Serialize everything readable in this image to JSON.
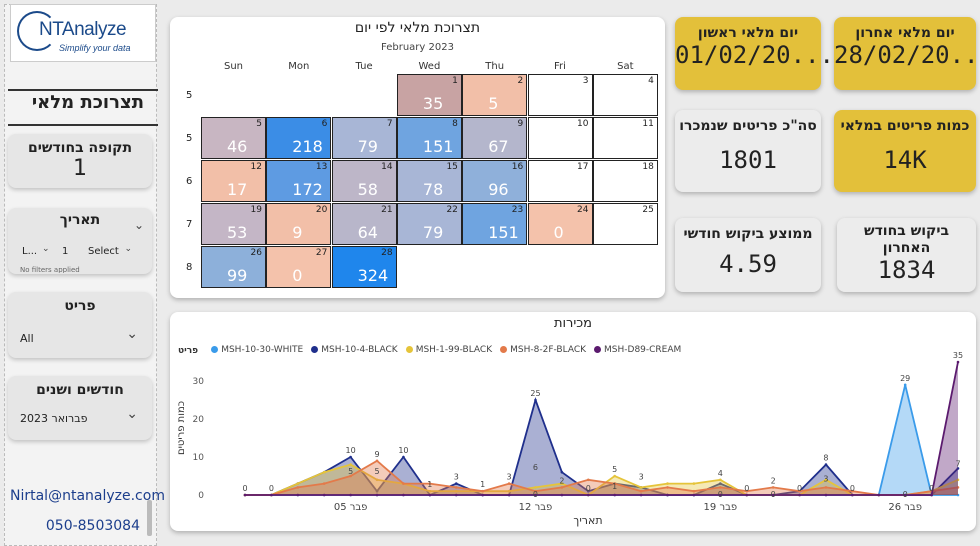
{
  "logo": {
    "name": "NTAnalyze",
    "tagline": "Simplify your data"
  },
  "sidebar": {
    "title": "תצרוכת מלאי",
    "period": {
      "label": "תקופה בחודשים",
      "value": "1"
    },
    "date": {
      "label": "תאריך",
      "op": "L...",
      "num": "1",
      "select": "Select",
      "note": "No filters applied"
    },
    "item": {
      "label": "פריט",
      "value": "All"
    },
    "months": {
      "label": "חודשים ושנים",
      "value": "פברואר 2023"
    },
    "email": "Nirtal@ntanalyze.com",
    "phone": "050-8503084"
  },
  "calendar": {
    "title": "תצרוכת מלאי לפי יום",
    "month": "February 2023",
    "dows": [
      "Sun",
      "Mon",
      "Tue",
      "Wed",
      "Thu",
      "Fri",
      "Sat"
    ],
    "weeks": [
      "5",
      "5",
      "6",
      "7",
      "8"
    ],
    "cells": [
      {
        "r": 0,
        "c": 3,
        "d": "1",
        "v": "35",
        "col": "#c8a3a3"
      },
      {
        "r": 0,
        "c": 4,
        "d": "2",
        "v": "5",
        "col": "#f2bfa8"
      },
      {
        "r": 0,
        "c": 5,
        "d": "3",
        "v": "",
        "col": "#ffffff"
      },
      {
        "r": 0,
        "c": 6,
        "d": "4",
        "v": "",
        "col": "#ffffff"
      },
      {
        "r": 1,
        "c": 0,
        "d": "5",
        "v": "46",
        "col": "#c8b6c2"
      },
      {
        "r": 1,
        "c": 1,
        "d": "6",
        "v": "218",
        "col": "#3b8de6"
      },
      {
        "r": 1,
        "c": 2,
        "d": "7",
        "v": "79",
        "col": "#a8b6d6"
      },
      {
        "r": 1,
        "c": 3,
        "d": "8",
        "v": "151",
        "col": "#6fa4e0"
      },
      {
        "r": 1,
        "c": 4,
        "d": "9",
        "v": "67",
        "col": "#b4b6cc"
      },
      {
        "r": 1,
        "c": 5,
        "d": "10",
        "v": "",
        "col": "#ffffff"
      },
      {
        "r": 1,
        "c": 6,
        "d": "11",
        "v": "",
        "col": "#ffffff"
      },
      {
        "r": 2,
        "c": 0,
        "d": "12",
        "v": "17",
        "col": "#f2bfa8"
      },
      {
        "r": 2,
        "c": 1,
        "d": "13",
        "v": "172",
        "col": "#5e9be2"
      },
      {
        "r": 2,
        "c": 2,
        "d": "14",
        "v": "58",
        "col": "#bdb6c8"
      },
      {
        "r": 2,
        "c": 3,
        "d": "15",
        "v": "78",
        "col": "#a8b6d6"
      },
      {
        "r": 2,
        "c": 4,
        "d": "16",
        "v": "96",
        "col": "#8fb0da"
      },
      {
        "r": 2,
        "c": 5,
        "d": "17",
        "v": "",
        "col": "#ffffff"
      },
      {
        "r": 2,
        "c": 6,
        "d": "18",
        "v": "",
        "col": "#ffffff"
      },
      {
        "r": 3,
        "c": 0,
        "d": "19",
        "v": "53",
        "col": "#c4b6c6"
      },
      {
        "r": 3,
        "c": 1,
        "d": "20",
        "v": "9",
        "col": "#f2bfa8"
      },
      {
        "r": 3,
        "c": 2,
        "d": "21",
        "v": "64",
        "col": "#b8b6ca"
      },
      {
        "r": 3,
        "c": 3,
        "d": "22",
        "v": "79",
        "col": "#a8b6d6"
      },
      {
        "r": 3,
        "c": 4,
        "d": "23",
        "v": "151",
        "col": "#6fa4e0"
      },
      {
        "r": 3,
        "c": 5,
        "d": "24",
        "v": "0",
        "col": "#f4c2ab"
      },
      {
        "r": 3,
        "c": 6,
        "d": "25",
        "v": "",
        "col": "#ffffff"
      },
      {
        "r": 4,
        "c": 0,
        "d": "26",
        "v": "99",
        "col": "#8db0da"
      },
      {
        "r": 4,
        "c": 1,
        "d": "27",
        "v": "0",
        "col": "#f4c2ab"
      },
      {
        "r": 4,
        "c": 2,
        "d": "28",
        "v": "324",
        "col": "#1f86ec"
      }
    ]
  },
  "kpis": {
    "last_day": {
      "label": "יום מלאי אחרון",
      "value": "28/02/20..."
    },
    "first_day": {
      "label": "יום מלאי ראשון",
      "value": "01/02/20..."
    },
    "stock_qty": {
      "label": "כמות פריטים במלאי",
      "value": "14K"
    },
    "sold_total": {
      "label": "סה\"כ פריטים שנמכרו",
      "value": "1801"
    },
    "last_month_demand": {
      "label": "ביקוש בחודש האחרון",
      "value": "1834"
    },
    "avg_monthly_demand": {
      "label": "ממוצע ביקוש חודשי",
      "value": "4.59"
    }
  },
  "chart_data": {
    "type": "area",
    "title": "מכירות",
    "legend_title": "פריט",
    "xlabel": "תאריך",
    "ylabel": "כמות פריטים",
    "ylim": [
      0,
      35
    ],
    "yticks": [
      0,
      10,
      20,
      30
    ],
    "xticks": [
      {
        "day": 5,
        "label": "פבר 05"
      },
      {
        "day": 12,
        "label": "פבר 12"
      },
      {
        "day": 19,
        "label": "פבר 19"
      },
      {
        "day": 26,
        "label": "פבר 26"
      }
    ],
    "x": [
      1,
      2,
      3,
      4,
      5,
      6,
      7,
      8,
      9,
      10,
      11,
      12,
      13,
      14,
      15,
      16,
      17,
      18,
      19,
      20,
      21,
      22,
      23,
      24,
      25,
      26,
      27,
      28
    ],
    "series": [
      {
        "name": "MSH-10-30-WHITE",
        "color": "#3a9bea",
        "values": [
          0,
          0,
          0,
          0,
          0,
          0,
          0,
          0,
          0,
          0,
          0,
          0,
          0,
          0,
          0,
          0,
          0,
          0,
          0,
          0,
          0,
          0,
          0,
          0,
          0,
          29,
          0,
          0
        ]
      },
      {
        "name": "MSH-10-4-BLACK",
        "color": "#1f2f8c",
        "values": [
          0,
          0,
          3,
          6,
          10,
          1,
          10,
          0,
          3,
          0,
          0,
          25,
          6,
          1,
          3,
          2,
          0,
          0,
          3,
          0,
          0,
          1,
          8,
          0,
          0,
          0,
          0,
          7
        ]
      },
      {
        "name": "MSH-1-99-BLACK",
        "color": "#e5c43a",
        "values": [
          0,
          0,
          3,
          6,
          8,
          4,
          3,
          1,
          1,
          1,
          1,
          2,
          3,
          0,
          5,
          2,
          3,
          3,
          4,
          0,
          0,
          0,
          4,
          0,
          0,
          0,
          1,
          4
        ]
      },
      {
        "name": "MSH-8-2F-BLACK",
        "color": "#e37a4a",
        "values": [
          0,
          0,
          2,
          3,
          5,
          9,
          3,
          3,
          2,
          1,
          3,
          1,
          2,
          4,
          3,
          1,
          2,
          1,
          2,
          1,
          2,
          1,
          2,
          1,
          0,
          0,
          1,
          2
        ]
      },
      {
        "name": "MSH-D89-CREAM",
        "color": "#5b1a6e",
        "values": [
          0,
          0,
          0,
          0,
          0,
          0,
          0,
          0,
          0,
          0,
          0,
          0,
          0,
          0,
          0,
          0,
          0,
          0,
          0,
          0,
          0,
          0,
          0,
          0,
          0,
          0,
          0,
          35
        ]
      }
    ],
    "labels": [
      {
        "day": 1,
        "text": "0"
      },
      {
        "day": 2,
        "text": "0"
      },
      {
        "day": 5,
        "text": "10"
      },
      {
        "day": 5,
        "text": "5",
        "low": true
      },
      {
        "day": 6,
        "text": "9"
      },
      {
        "day": 6,
        "text": "5",
        "low": true
      },
      {
        "day": 7,
        "text": "10"
      },
      {
        "day": 8,
        "text": "1"
      },
      {
        "day": 9,
        "text": "3"
      },
      {
        "day": 10,
        "text": "1"
      },
      {
        "day": 11,
        "text": "3"
      },
      {
        "day": 12,
        "text": "25"
      },
      {
        "day": 12,
        "text": "6",
        "low": true
      },
      {
        "day": 12,
        "text": "0",
        "zero": true
      },
      {
        "day": 13,
        "text": "2"
      },
      {
        "day": 14,
        "text": "0"
      },
      {
        "day": 15,
        "text": "5"
      },
      {
        "day": 15,
        "text": "1",
        "low": true
      },
      {
        "day": 16,
        "text": "3"
      },
      {
        "day": 19,
        "text": "4"
      },
      {
        "day": 19,
        "text": "0",
        "zero": true
      },
      {
        "day": 20,
        "text": "0"
      },
      {
        "day": 21,
        "text": "2"
      },
      {
        "day": 21,
        "text": "0",
        "zero": true
      },
      {
        "day": 22,
        "text": "0"
      },
      {
        "day": 23,
        "text": "8"
      },
      {
        "day": 23,
        "text": "3",
        "low": true
      },
      {
        "day": 24,
        "text": "0"
      },
      {
        "day": 26,
        "text": "29"
      },
      {
        "day": 26,
        "text": "0",
        "zero": true
      },
      {
        "day": 27,
        "text": "0"
      },
      {
        "day": 28,
        "text": "35"
      },
      {
        "day": 28,
        "text": "7",
        "low": true
      }
    ]
  }
}
